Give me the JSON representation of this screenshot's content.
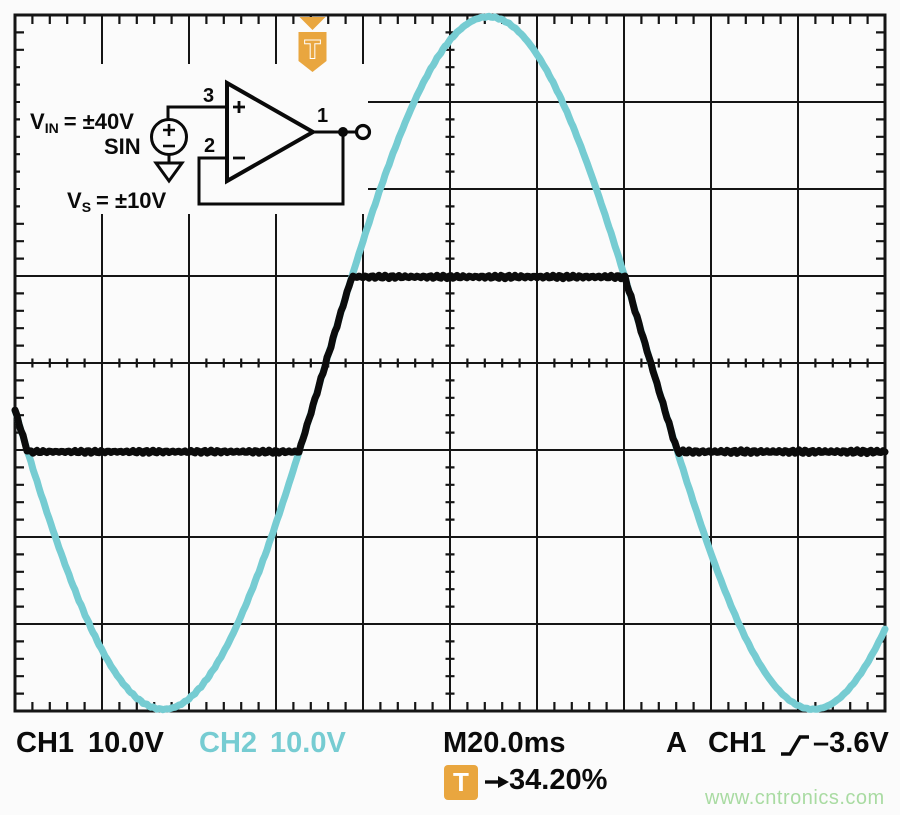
{
  "scope": {
    "background": "#fbfbfb",
    "grid_color": "#151515"
  },
  "inset": {
    "vin_main": "V",
    "vin_sub": "IN",
    "vin_rest": "= ±40V",
    "sin_label": "SIN",
    "vs_main": "V",
    "vs_sub": "S",
    "vs_rest": "= ±10V",
    "pin_noninverting": "3",
    "pin_inverting": "2",
    "pin_output": "1"
  },
  "trigger_flag": {
    "label": "T",
    "color": "#e9a63f"
  },
  "readout": {
    "ch1_label": "CH1",
    "ch1_scale": "10.0V",
    "ch2_label": "CH2",
    "ch2_scale": "10.0V",
    "timebase": "M20.0ms",
    "trig_mode": "A",
    "trig_source": "CH1",
    "trig_level": "–3.6V",
    "t_badge": "T",
    "trig_position": "34.20%"
  },
  "colors": {
    "ch1_trace": "#0c0c0c",
    "ch2_trace": "#76ccd2",
    "orange": "#e9a63f",
    "watermark_green": "#a9dba2"
  },
  "watermark": "www.cntronics.com",
  "chart_data": {
    "type": "line",
    "title": "Op-amp input overvoltage: ±40V sine input vs output clipped by ±10V supplies",
    "x_axis": {
      "per_division": "20.0 ms",
      "divisions": 10
    },
    "y_axis": {
      "per_division": "10.0 V",
      "divisions": 8
    },
    "series": [
      {
        "name": "CH2 — input sine (VIN = ±40V SIN)",
        "shape": "sine",
        "amplitude_V": 39.8,
        "offset_V": 0,
        "period_div": 7.47,
        "peak_at_div": 5.44
      },
      {
        "name": "CH1 — buffer output clipped near supplies (VS = ±10V)",
        "shape": "clipped_sine",
        "clip_high_V": 9.9,
        "clip_low_V": -10.2
      }
    ],
    "trigger": {
      "source": "CH1",
      "slope": "rising",
      "level_V": -3.6,
      "horizontal_position_pct": 34.2
    }
  }
}
